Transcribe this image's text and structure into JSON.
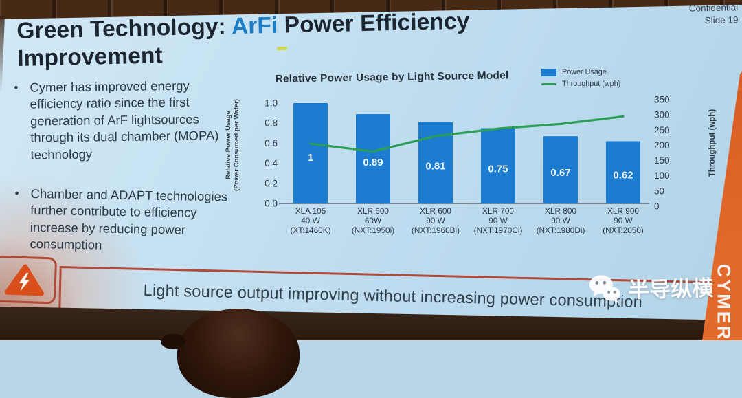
{
  "page": {
    "confidential": "Confidential",
    "slide_number": "Slide 19"
  },
  "title": {
    "prefix": "Green Technology: ",
    "highlight": "ArFi",
    "suffix": " Power Efficiency Improvement"
  },
  "bullets": [
    "Cymer has improved energy efficiency ratio since the first generation of ArF lightsources through its dual chamber (MOPA) technology",
    "Chamber and ADAPT technologies further contribute to efficiency increase by reducing power consumption"
  ],
  "chart_data": {
    "type": "bar",
    "title": "Relative Power Usage by Light Source Model",
    "categories": [
      [
        "XLA 105",
        "40 W",
        "(XT:1460K)"
      ],
      [
        "XLR 600",
        "60W",
        "(NXT:1950i)"
      ],
      [
        "XLR 600",
        "90 W",
        "(NXT:1960Bi)"
      ],
      [
        "XLR 700",
        "90 W",
        "(NXT:1970Ci)"
      ],
      [
        "XLR 800",
        "90 W",
        "(NXT:1980Di)"
      ],
      [
        "XLR 900",
        "90 W",
        "(NXT:2050)"
      ]
    ],
    "series": [
      {
        "name": "Power Usage",
        "type": "bar",
        "axis": "left",
        "color": "#1b7cd0",
        "values": [
          1,
          0.89,
          0.81,
          0.75,
          0.67,
          0.62
        ],
        "labels": [
          "1",
          "0.89",
          "0.81",
          "0.75",
          "0.67",
          "0.62"
        ]
      },
      {
        "name": "Throughput (wph)",
        "type": "line",
        "axis": "right",
        "color": "#2d9e57",
        "values": [
          205,
          180,
          230,
          255,
          270,
          295
        ]
      }
    ],
    "left_axis": {
      "label_line1": "Relative Power Usage",
      "label_line2": "(Power Consumed per Wafer)",
      "range": [
        0,
        1
      ],
      "ticks": [
        "1.0",
        "0.8",
        "0.6",
        "0.4",
        "0.2",
        "0.0"
      ]
    },
    "right_axis": {
      "label": "Throughput (wph)",
      "range": [
        0,
        350
      ],
      "ticks": [
        "350",
        "300",
        "250",
        "200",
        "150",
        "100",
        "50",
        "0"
      ]
    },
    "legend_position": "top-right",
    "grid": false
  },
  "banner": {
    "text": "Light source output improving without increasing power consumption"
  },
  "watermark": {
    "text": "半导纵横"
  },
  "branding": {
    "vertical_text": "CYMER"
  },
  "colors": {
    "slide_bg": "#bfdcee",
    "bar_blue": "#1b7cd0",
    "line_green": "#2d9e57",
    "title_highlight": "#1d7dc6",
    "banner_border": "#b04a3a",
    "warning_orange": "#d84f1b",
    "side_band_orange": "#d4561e"
  }
}
